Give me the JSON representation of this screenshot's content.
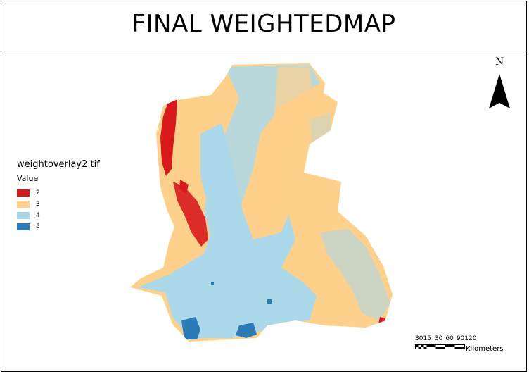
{
  "title": "FINAL WEIGHTEDMAP",
  "north_label": "N",
  "legend": {
    "layer_name": "weightoverlay2.tif",
    "field_name": "Value",
    "classes": [
      {
        "label": "2",
        "color": "#d7191c"
      },
      {
        "label": "3",
        "color": "#fdd08c"
      },
      {
        "label": "4",
        "color": "#abd9e9"
      },
      {
        "label": "5",
        "color": "#2c7bb6"
      }
    ]
  },
  "scale_bar": {
    "ticks": [
      "30",
      "15",
      "0",
      "30",
      "60",
      "90",
      "120"
    ],
    "unit": "Kilometers"
  }
}
